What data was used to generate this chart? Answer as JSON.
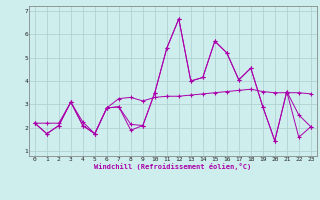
{
  "xlabel": "Windchill (Refroidissement éolien,°C)",
  "ylabel": "",
  "xlim": [
    -0.5,
    23.5
  ],
  "ylim": [
    0.8,
    7.2
  ],
  "yticks": [
    1,
    2,
    3,
    4,
    5,
    6,
    7
  ],
  "xticks": [
    0,
    1,
    2,
    3,
    4,
    5,
    6,
    7,
    8,
    9,
    10,
    11,
    12,
    13,
    14,
    15,
    16,
    17,
    18,
    19,
    20,
    21,
    22,
    23
  ],
  "background_color": "#ceeeed",
  "line_color": "#aa00aa",
  "grid_color": "#aacccc",
  "line1": [
    2.2,
    1.75,
    2.1,
    3.1,
    2.1,
    1.75,
    2.85,
    2.9,
    1.9,
    2.1,
    3.5,
    5.4,
    6.65,
    4.0,
    4.15,
    5.7,
    5.2,
    4.05,
    4.55,
    2.9,
    1.45,
    3.55,
    2.55,
    2.05
  ],
  "line2": [
    2.2,
    1.75,
    2.1,
    3.1,
    2.1,
    1.75,
    2.85,
    2.9,
    2.15,
    2.1,
    3.5,
    5.4,
    6.65,
    4.0,
    4.15,
    5.7,
    5.2,
    4.05,
    4.55,
    2.9,
    1.45,
    3.55,
    1.6,
    2.05
  ],
  "line3": [
    2.2,
    2.2,
    2.2,
    3.1,
    2.25,
    1.75,
    2.85,
    3.25,
    3.3,
    3.15,
    3.3,
    3.35,
    3.35,
    3.4,
    3.45,
    3.5,
    3.55,
    3.6,
    3.65,
    3.55,
    3.5,
    3.5,
    3.5,
    3.45
  ]
}
